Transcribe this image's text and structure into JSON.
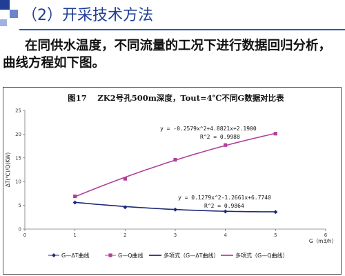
{
  "header": {
    "title": "（2）开采技术方法"
  },
  "body": {
    "line1": "在同供水温度，不同流量的工况下进行数据回归分析，",
    "line2": "曲线方程如下图。"
  },
  "colors": {
    "title": "#1f3f96",
    "series_dt": "#1f2a78",
    "series_q": "#b0409a",
    "accent": "#2b55b8"
  },
  "chart_data": {
    "type": "scatter",
    "title": "图17　 ZK2号孔500m深度，Tout=4℃不同G数据对比表",
    "xlabel": "G（m3/h）",
    "ylabel": "ΔT(℃)/Q(KW)",
    "xlim": [
      0,
      6
    ],
    "ylim": [
      0,
      25
    ],
    "xticks": [
      "0",
      "1",
      "2",
      "3",
      "4",
      "5",
      "6"
    ],
    "yticks": [
      "0",
      "5",
      "10",
      "15",
      "20",
      "25"
    ],
    "grid": false,
    "legend_position": "bottom",
    "series": [
      {
        "name": "G—ΔT曲线",
        "marker": "diamond",
        "color": "#1f2a78",
        "x": [
          1,
          2,
          3,
          4,
          5
        ],
        "y": [
          5.6,
          4.6,
          4.1,
          3.7,
          3.6
        ]
      },
      {
        "name": "G—Q曲线",
        "marker": "square",
        "color": "#b0409a",
        "x": [
          1,
          2,
          3,
          4,
          5
        ],
        "y": [
          6.9,
          10.6,
          14.6,
          17.7,
          20.1
        ]
      }
    ],
    "trendlines": [
      {
        "name": "多项式（G—ΔT曲线）",
        "color": "#1f2a78",
        "coefficients": [
          0.1279,
          -1.2661,
          6.774
        ],
        "equation": "y = 0.1279x^2-1.2661x+6.7740",
        "r2": "R^2 = 0.9864"
      },
      {
        "name": "多项式（G—Q曲线）",
        "color": "#b0409a",
        "coefficients": [
          -0.2579,
          4.8821,
          2.19
        ],
        "equation": "y = -0.2579x^2+4.8821x+2.1900",
        "r2": "R^2 = 0.9988"
      }
    ]
  }
}
